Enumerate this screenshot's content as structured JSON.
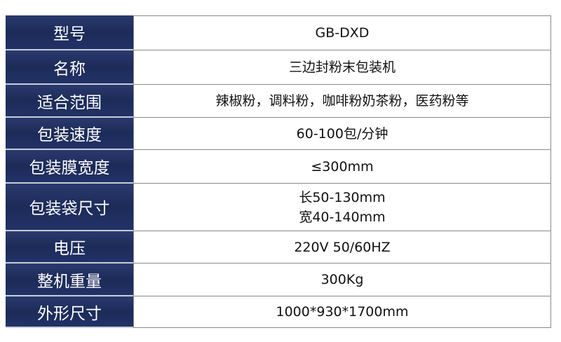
{
  "table": {
    "rows": [
      [
        "型号",
        "GB-DXD"
      ],
      [
        "名称",
        "三边封粉末包装机"
      ],
      [
        "适合范围",
        "辣椒粉，调料粉，咖啡粉奶茶粉，医药粉等"
      ],
      [
        "包装速度",
        "60-100包/分钟"
      ],
      [
        "包装膜宽度",
        "≤300mm"
      ],
      [
        "包装袋尺寸",
        [
          "长50-130mm",
          "宽40-140mm"
        ]
      ],
      [
        "电压",
        "220V  50/60HZ"
      ],
      [
        "整机重量",
        "300Kg"
      ],
      [
        "外形尺寸",
        "1000*930*1700mm"
      ]
    ]
  }
}
